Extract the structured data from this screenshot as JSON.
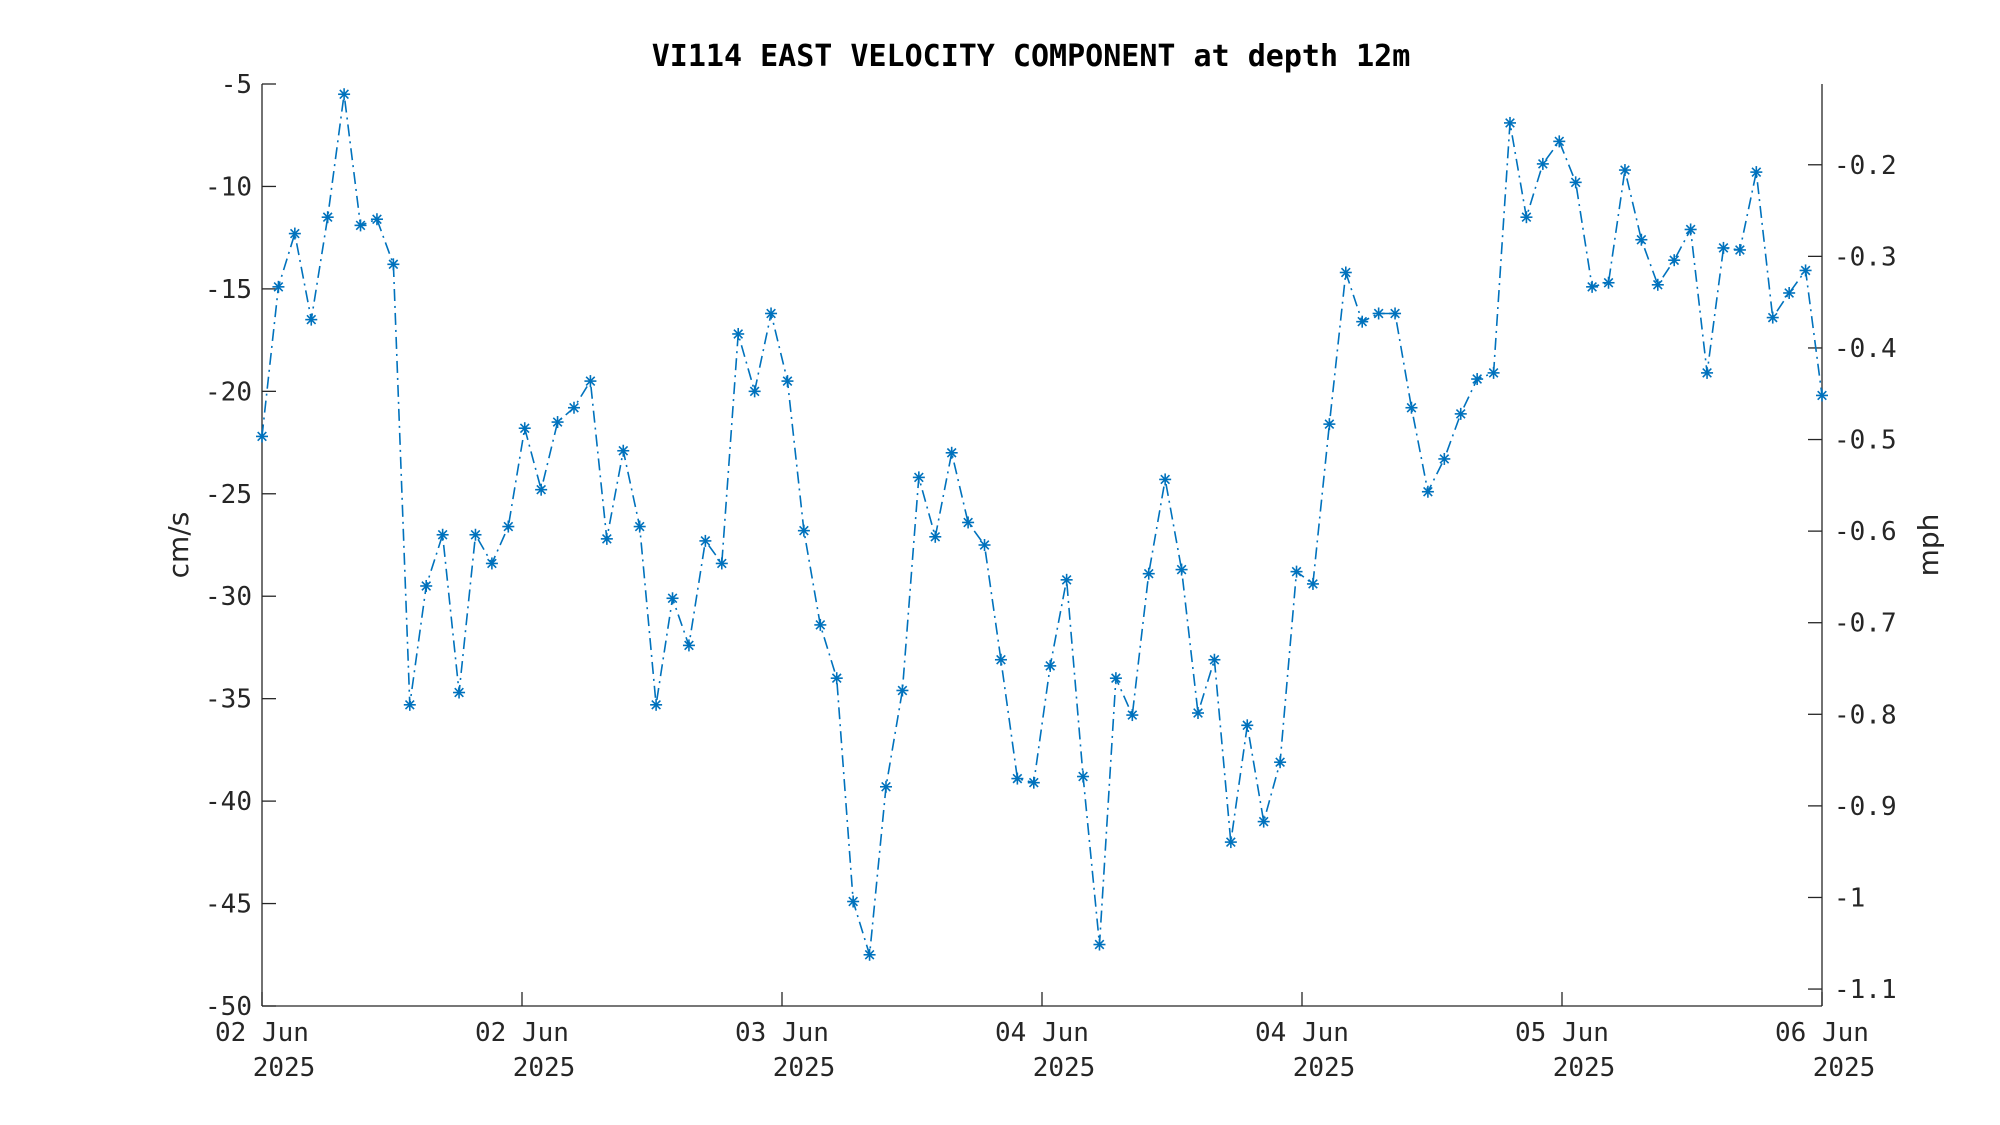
{
  "colors": {
    "series": "#0072BD",
    "axis": "#262626"
  },
  "chart_data": {
    "type": "line",
    "title": "VI114 EAST VELOCITY COMPONENT at depth 12m",
    "ylabel": "cm/s",
    "y2label": "mph",
    "ylim": [
      -50,
      -5
    ],
    "y2lim": [
      -1.1185,
      -0.1118
    ],
    "yticks": [
      "-5",
      "-10",
      "-15",
      "-20",
      "-25",
      "-30",
      "-35",
      "-40",
      "-45",
      "-50"
    ],
    "y2ticks": [
      "-0.2",
      "-0.3",
      "-0.4",
      "-0.5",
      "-0.6",
      "-0.7",
      "-0.8",
      "-0.9",
      "-1",
      "-1.1"
    ],
    "xticks": [
      {
        "line1": "02 Jun",
        "line2": "2025"
      },
      {
        "line1": "02 Jun",
        "line2": "2025"
      },
      {
        "line1": "03 Jun",
        "line2": "2025"
      },
      {
        "line1": "04 Jun",
        "line2": "2025"
      },
      {
        "line1": "04 Jun",
        "line2": "2025"
      },
      {
        "line1": "05 Jun",
        "line2": "2025"
      },
      {
        "line1": "06 Jun",
        "line2": "2025"
      }
    ],
    "marker": "asterisk",
    "line_style": "dash-dot",
    "legend": "none",
    "grid": false,
    "series": [
      {
        "values": [
          -22.2,
          -14.9,
          -12.3,
          -16.5,
          -11.5,
          -5.5,
          -11.9,
          -11.6,
          -13.8,
          -35.3,
          -29.5,
          -27.0,
          -34.7,
          -27.0,
          -28.4,
          -26.6,
          -21.8,
          -24.8,
          -21.5,
          -20.8,
          -19.5,
          -27.2,
          -22.9,
          -26.6,
          -35.3,
          -30.1,
          -32.4,
          -27.3,
          -28.4,
          -17.2,
          -20.0,
          -16.2,
          -19.5,
          -26.8,
          -31.4,
          -34.0,
          -44.9,
          -47.5,
          -39.3,
          -34.6,
          -24.2,
          -27.1,
          -23.0,
          -26.4,
          -27.5,
          -33.1,
          -38.9,
          -39.1,
          -33.4,
          -29.2,
          -38.8,
          -47.0,
          -34.0,
          -35.8,
          -28.9,
          -24.3,
          -28.7,
          -35.7,
          -33.1,
          -42.0,
          -36.3,
          -41.0,
          -38.1,
          -28.8,
          -29.4,
          -21.6,
          -14.2,
          -16.6,
          -16.2,
          -16.2,
          -20.8,
          -24.9,
          -23.3,
          -21.1,
          -19.4,
          -19.1,
          -6.9,
          -11.5,
          -8.9,
          -7.8,
          -9.8,
          -14.9,
          -14.7,
          -9.2,
          -12.6,
          -14.8,
          -13.6,
          -12.1,
          -19.1,
          -13.0,
          -13.1,
          -9.3,
          -16.4,
          -15.2,
          -14.1,
          -20.2
        ]
      }
    ]
  }
}
